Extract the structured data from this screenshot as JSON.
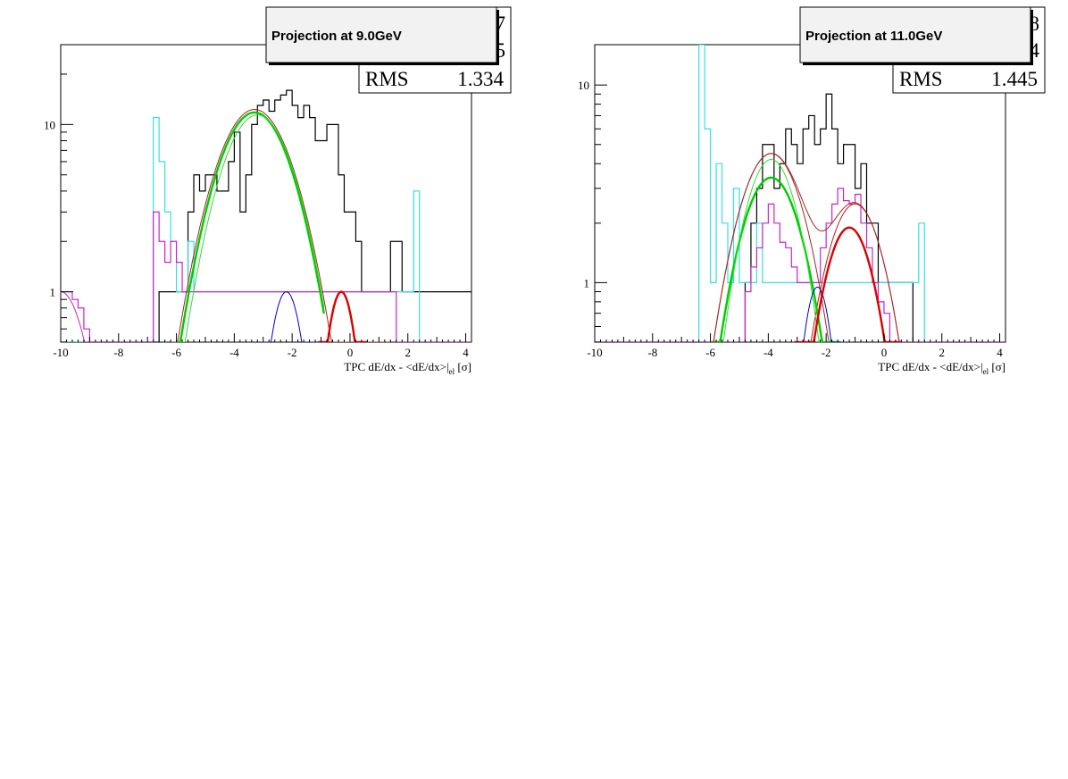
{
  "colors": {
    "data": "#000000",
    "cyan": "#33e0e0",
    "magenta": "#cc22cc",
    "green": "#00cc00",
    "green_light": "#33dd33",
    "red": "#dd0000",
    "darkred": "#aa2222",
    "blue": "#0000cc"
  },
  "chart_data": [
    {
      "type": "line",
      "title": "Projection at 9.0GeV",
      "xlabel": "TPC dE/dx - <dE/dx>|el [σ]",
      "xlabel_parts": {
        "main": "TPC dE/dx - <dE/dx>|",
        "sub": "el",
        "unit": " [σ]"
      },
      "xlim": [
        -10,
        4.2
      ],
      "ylim": [
        0.5,
        30
      ],
      "yscale": "log",
      "xticks": [
        -10,
        -8,
        -6,
        -4,
        -2,
        0,
        2,
        4
      ],
      "yticks": [
        1,
        10
      ],
      "stats": {
        "label": "RMS",
        "value": "1.334",
        "hidden_digits": [
          "7",
          "5"
        ]
      },
      "hist_bin_start": -10,
      "hist_bin_width": 0.2,
      "series": [
        {
          "role": "data_hist",
          "color_key": "data",
          "values": [
            0,
            0,
            0,
            0,
            0,
            0,
            0,
            0,
            0,
            0,
            0,
            0,
            0,
            0,
            0,
            0,
            0,
            1,
            1,
            1,
            1,
            1,
            3,
            5,
            4,
            5,
            5,
            4,
            4,
            6,
            9,
            3,
            5,
            10,
            13,
            14,
            12,
            14,
            15,
            16,
            13,
            11,
            13,
            11,
            8,
            8,
            10,
            10,
            5,
            3,
            3,
            2,
            1,
            1,
            1,
            1,
            1,
            2,
            2,
            1,
            1,
            1,
            1,
            1,
            1,
            1,
            1,
            1,
            1,
            1,
            1
          ]
        },
        {
          "role": "cyan_hist",
          "color_key": "cyan",
          "values": [
            0,
            0,
            0,
            0,
            0,
            0,
            0,
            0,
            0,
            0,
            0,
            0,
            0,
            0,
            0,
            0,
            11,
            6,
            3,
            2,
            1,
            1,
            2,
            1,
            1,
            1,
            1,
            1,
            1,
            1,
            1,
            1,
            1,
            1,
            1,
            1,
            1,
            1,
            1,
            1,
            1,
            1,
            1,
            1,
            1,
            1,
            1,
            1,
            1,
            1,
            1,
            1,
            1,
            1,
            1,
            1,
            1,
            1,
            1,
            1,
            1,
            4,
            0,
            0,
            0,
            0,
            0,
            0,
            0,
            0,
            0
          ]
        },
        {
          "role": "magenta_hist",
          "color_key": "magenta",
          "values": [
            1,
            1,
            0.9,
            0.8,
            0.6,
            0.5,
            0,
            0,
            0,
            0,
            0,
            0,
            0,
            0,
            0,
            0,
            3,
            2,
            1.5,
            2,
            1.5,
            1,
            1,
            1,
            1,
            1,
            1,
            1,
            1,
            1,
            1,
            1,
            1,
            1,
            1,
            1,
            1,
            1,
            1,
            1,
            1,
            1,
            1,
            1,
            1,
            1,
            1,
            1,
            1,
            1,
            1,
            1,
            1,
            1,
            1,
            1,
            1,
            1,
            0,
            0,
            0,
            0,
            0,
            0,
            0,
            0,
            0,
            0,
            0,
            0,
            0
          ]
        },
        {
          "role": "gauss",
          "color_key": "darkred",
          "amp": 12.3,
          "mu": -3.3,
          "sigma": 1.05,
          "range": [
            -6.2,
            1.4
          ]
        },
        {
          "role": "gauss",
          "color_key": "green",
          "amp": 11.8,
          "mu": -3.3,
          "sigma": 1.02,
          "range": [
            -6.0,
            -0.9
          ]
        },
        {
          "role": "gauss",
          "color_key": "green_light",
          "amp": 11.4,
          "mu": -3.2,
          "sigma": 1.0,
          "range": [
            -6.0,
            -0.9
          ]
        },
        {
          "role": "gauss",
          "color_key": "blue",
          "amp": 1.0,
          "mu": -2.2,
          "sigma": 0.45,
          "range": [
            -3.1,
            -1.2
          ]
        },
        {
          "role": "gauss",
          "color_key": "red",
          "amp": 1.0,
          "mu": -0.3,
          "sigma": 0.4,
          "range": [
            -1.1,
            0.6
          ]
        },
        {
          "role": "gauss",
          "color_key": "magenta",
          "amp": 1.0,
          "mu": -10,
          "sigma": 0.7,
          "range": [
            -10,
            -8.9
          ]
        }
      ]
    },
    {
      "type": "line",
      "title": "Projection at 11.0GeV",
      "xlabel": "TPC dE/dx - <dE/dx>|el [σ]",
      "xlabel_parts": {
        "main": "TPC dE/dx - <dE/dx>|",
        "sub": "el",
        "unit": " [σ]"
      },
      "xlim": [
        -10,
        4.2
      ],
      "ylim": [
        0.5,
        16
      ],
      "yscale": "log",
      "xticks": [
        -10,
        -8,
        -6,
        -4,
        -2,
        0,
        2,
        4
      ],
      "yticks": [
        1,
        10
      ],
      "stats": {
        "label": "RMS",
        "value": "1.445",
        "hidden_digits": [
          "8",
          "4"
        ]
      },
      "hist_bin_start": -10,
      "hist_bin_width": 0.2,
      "series": [
        {
          "role": "data_hist",
          "color_key": "data",
          "values": [
            0,
            0,
            0,
            0,
            0,
            0,
            0,
            0,
            0,
            0,
            0,
            0,
            0,
            0,
            0,
            0,
            0,
            0,
            0,
            0,
            0,
            0,
            0,
            0,
            0,
            0,
            1,
            2,
            3,
            5,
            5,
            3,
            4,
            6,
            5,
            4,
            6,
            7,
            5,
            6,
            9,
            6,
            4,
            5,
            5,
            3,
            4,
            2,
            2,
            1,
            1,
            1,
            1,
            1,
            1,
            0,
            0,
            0,
            0,
            0,
            0,
            0,
            0,
            0,
            0,
            0,
            0,
            0,
            0,
            0,
            0
          ]
        },
        {
          "role": "cyan_hist",
          "color_key": "cyan",
          "values": [
            0,
            0,
            0,
            0,
            0,
            0,
            0,
            0,
            0,
            0,
            0,
            0,
            0,
            0,
            0,
            0,
            0,
            0,
            16,
            6,
            1,
            4,
            2,
            1,
            3,
            1,
            1,
            1,
            2,
            1,
            1,
            1,
            1,
            1,
            1,
            1,
            1,
            1,
            1,
            1,
            1,
            1,
            1,
            1,
            1,
            1,
            1,
            1,
            1,
            1,
            1,
            1,
            1,
            1,
            1,
            1,
            2,
            0,
            0,
            0,
            0,
            0,
            0,
            0,
            0,
            0,
            0,
            0,
            0,
            0,
            0
          ]
        },
        {
          "role": "magenta_hist",
          "color_key": "magenta",
          "values": [
            0,
            0,
            0,
            0,
            0,
            0,
            0,
            0,
            0,
            0,
            0,
            0,
            0,
            0,
            0,
            0,
            0,
            0,
            0,
            0,
            0,
            0,
            0,
            0,
            0,
            0,
            0.9,
            1.2,
            1.5,
            2,
            2.5,
            2,
            1.6,
            1.5,
            1.2,
            1,
            1,
            1,
            1,
            1.5,
            2,
            2.5,
            3,
            2.6,
            2.5,
            2.8,
            2,
            1.5,
            1,
            0.8,
            0.7,
            0,
            0,
            0,
            0,
            0,
            0,
            0,
            0,
            0,
            0,
            0,
            0,
            0,
            0,
            0,
            0,
            0,
            0,
            0,
            0
          ]
        },
        {
          "role": "gauss",
          "color_key": "darkred",
          "amp": 4.5,
          "mu": -3.9,
          "sigma": 0.95,
          "range": [
            -6.0,
            -1.4
          ]
        },
        {
          "role": "gauss",
          "color_key": "darkred",
          "amp": 2.5,
          "mu": -1.0,
          "sigma": 0.85,
          "range": [
            -3.0,
            1.0
          ]
        },
        {
          "role": "gauss",
          "color_key": "green",
          "amp": 3.4,
          "mu": -3.9,
          "sigma": 0.9,
          "range": [
            -5.9,
            -1.5
          ]
        },
        {
          "role": "gauss",
          "color_key": "green_light",
          "amp": 4.2,
          "mu": -3.9,
          "sigma": 0.8,
          "range": [
            -5.6,
            -1.9
          ]
        },
        {
          "role": "gauss",
          "color_key": "blue",
          "amp": 0.95,
          "mu": -2.3,
          "sigma": 0.42,
          "range": [
            -3.2,
            -1.3
          ]
        },
        {
          "role": "gauss",
          "color_key": "red",
          "amp": 1.9,
          "mu": -1.2,
          "sigma": 0.75,
          "range": [
            -3.1,
            0.6
          ]
        },
        {
          "role": "sum",
          "color_key": "darkred",
          "components": [
            [
              4.5,
              -3.9,
              0.95
            ],
            [
              2.5,
              -1.0,
              0.85
            ]
          ],
          "range": [
            -6.0,
            1.0
          ]
        }
      ]
    }
  ]
}
